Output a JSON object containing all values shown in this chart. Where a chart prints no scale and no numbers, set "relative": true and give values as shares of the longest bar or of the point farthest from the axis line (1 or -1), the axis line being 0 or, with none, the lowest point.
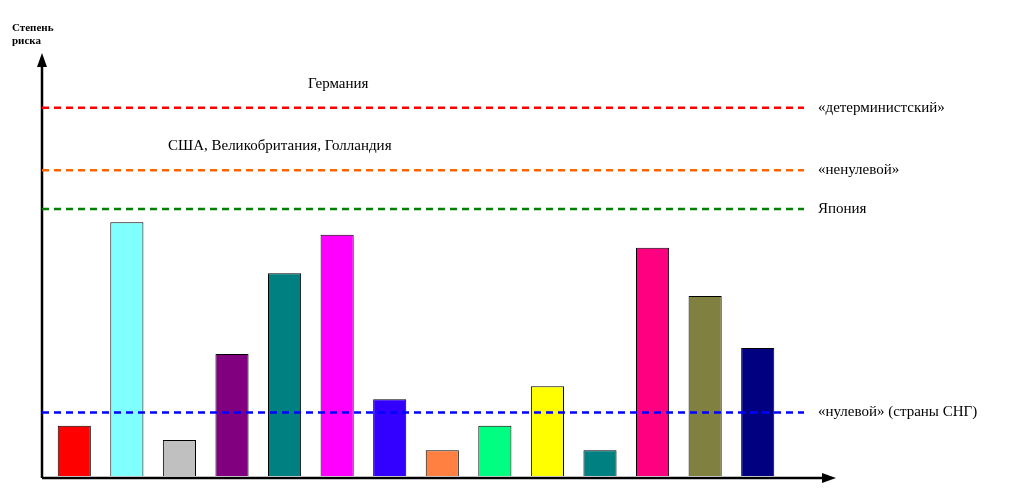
{
  "chart_data": {
    "type": "bar",
    "relative": true,
    "categories": [
      null,
      null,
      null,
      null,
      null,
      null,
      null,
      null,
      null,
      null,
      null,
      null,
      null,
      null
    ],
    "values": [
      0.198,
      1,
      0.142,
      0.481,
      0.799,
      0.951,
      0.302,
      0.101,
      0.198,
      0.354,
      0.101,
      0.899,
      0.709,
      0.504
    ],
    "colors": [
      "#ff0000",
      "#80ffff",
      "#c0c0c0",
      "#800080",
      "#008080",
      "#ff00ff",
      "#3300ff",
      "#ff8040",
      "#00ff80",
      "#ffff00",
      "#008080",
      "#ff0080",
      "#808040",
      "#000080"
    ],
    "ref_lines": [
      {
        "axis": "y",
        "value": 1.451,
        "label": "«детерминистский»",
        "color": "#ff0000",
        "line_style": "dashed"
      },
      {
        "axis": "y",
        "value": 1.205,
        "label": "«ненулевой»",
        "color": "#ff6600",
        "line_style": "dashed"
      },
      {
        "axis": "y",
        "value": 1.052,
        "label": "Япония",
        "color": "#008000",
        "line_style": "dashed"
      },
      {
        "axis": "y",
        "value": 0.25,
        "label": "«нулевой» (страны СНГ)",
        "color": "#0000ff",
        "line_style": "dashed"
      }
    ],
    "annotations": [
      "Степень риска",
      {
        "text": "Германия",
        "y": 1.451
      },
      {
        "text": "США, Великобритания, Голландия",
        "y": 1.205
      }
    ],
    "legend": false
  }
}
